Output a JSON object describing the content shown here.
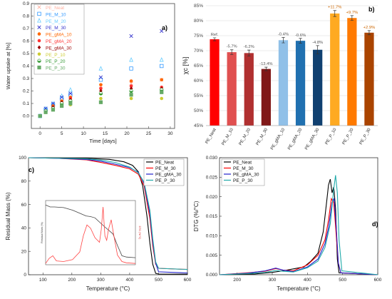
{
  "panels": {
    "a": {
      "label": "a)"
    },
    "b": {
      "label": "b)"
    },
    "c": {
      "label": "c)"
    },
    "d": {
      "label": "d)"
    }
  },
  "chart_data": [
    {
      "id": "a",
      "type": "scatter",
      "xlabel": "Time [days]",
      "ylabel": "Water uptake at [%]",
      "xlim": [
        -2,
        31
      ],
      "ylim": [
        -0.1,
        0.9
      ],
      "xticks": [
        0,
        5,
        10,
        15,
        20,
        25,
        30
      ],
      "yticks": [
        0.0,
        0.1,
        0.2,
        0.3,
        0.4,
        0.5,
        0.6,
        0.7,
        0.8,
        0.9
      ],
      "x": [
        0,
        1.3,
        3,
        5,
        7,
        14,
        21,
        28
      ],
      "legend_position": "top-left",
      "series": [
        {
          "name": "PE_Neat",
          "color": "#ffb0a0",
          "marker": "x",
          "values": [
            0,
            0.04,
            0.07,
            0.12,
            0.14,
            0.24,
            0.26,
            0.29
          ]
        },
        {
          "name": "PE_M_10",
          "color": "#3399ff",
          "marker": "square",
          "values": [
            0,
            0.05,
            0.09,
            0.14,
            0.17,
            0.29,
            0.38,
            0.4
          ]
        },
        {
          "name": "PE_M_20",
          "color": "#66ccff",
          "marker": "triangle",
          "values": [
            0,
            0.06,
            0.1,
            0.16,
            0.21,
            0.38,
            0.45,
            0.45
          ]
        },
        {
          "name": "PE_M_30",
          "color": "#3333cc",
          "marker": "x",
          "values": [
            0,
            0.06,
            0.1,
            0.15,
            0.18,
            0.31,
            0.64,
            0.68
          ]
        },
        {
          "name": "PE_gMA_10",
          "color": "#ff6600",
          "marker": "circle",
          "values": [
            0,
            0.04,
            0.08,
            0.12,
            0.15,
            0.25,
            0.28,
            0.29
          ]
        },
        {
          "name": "PE_gMA_20",
          "color": "#ff3333",
          "marker": "circle",
          "values": [
            0,
            0.04,
            0.07,
            0.11,
            0.14,
            0.22,
            0.24,
            0.23
          ]
        },
        {
          "name": "PE_gMA_30",
          "color": "#990000",
          "marker": "diamond",
          "values": [
            0,
            0.04,
            0.07,
            0.11,
            0.13,
            0.2,
            0.22,
            0.22
          ]
        },
        {
          "name": "PE_P_10",
          "color": "#cccc33",
          "marker": "circle",
          "values": [
            0,
            0.03,
            0.05,
            0.08,
            0.09,
            0.14,
            0.14,
            0.14
          ]
        },
        {
          "name": "PE_P_20",
          "color": "#339933",
          "marker": "half-circle",
          "values": [
            0,
            0.04,
            0.06,
            0.1,
            0.12,
            0.18,
            0.2,
            0.21
          ]
        },
        {
          "name": "PE_P_30",
          "color": "#66aa66",
          "marker": "square-x",
          "values": [
            0,
            0.03,
            0.05,
            0.08,
            0.1,
            0.11,
            0.17,
            0.19
          ]
        }
      ]
    },
    {
      "id": "b",
      "type": "bar",
      "ylabel": "χc [%]",
      "ylim": [
        45,
        85
      ],
      "yticks": [
        45,
        50,
        55,
        60,
        65,
        70,
        75,
        80,
        85
      ],
      "ytick_labels": [
        "45%",
        "50%",
        "55%",
        "60%",
        "65%",
        "70%",
        "75%",
        "80%",
        "85%"
      ],
      "grid": true,
      "categories": [
        "PE_Neat",
        "PE_M_10",
        "PE_M_20",
        "PE_M_30",
        "PE_gMA_10",
        "PE_gMA_20",
        "PE_gMA_30",
        "PE_P_10",
        "PE_P_20",
        "PE_P_30"
      ],
      "values": [
        73.8,
        69.5,
        69.2,
        63.9,
        73.5,
        73.3,
        70.3,
        82.4,
        80.9,
        76.0
      ],
      "errors": [
        0.5,
        0.8,
        1.0,
        0.6,
        0.9,
        0.8,
        1.4,
        1.0,
        0.8,
        0.7
      ],
      "colors": [
        "#ff0000",
        "#e05050",
        "#b03030",
        "#801818",
        "#90c0e8",
        "#2070b0",
        "#104070",
        "#ffaa22",
        "#ff7a00",
        "#aa4400"
      ],
      "annotations": [
        "Ref.",
        "-5.7%",
        "-6.2%",
        "-13.4%",
        "-0.4%",
        "-0.6%",
        "-4.8%",
        "+11.7%",
        "+9.7%",
        "+2.9%"
      ],
      "annotation_colors": [
        "#555555",
        "#555555",
        "#555555",
        "#555555",
        "#555555",
        "#555555",
        "#555555",
        "#cc6600",
        "#cc6600",
        "#cc6600"
      ]
    },
    {
      "id": "c",
      "type": "line",
      "xlabel": "Temperature (°C)",
      "ylabel": "Residual Mass (%)",
      "xlim": [
        50,
        600
      ],
      "ylim": [
        0,
        100
      ],
      "xticks": [
        100,
        200,
        300,
        400,
        500,
        600
      ],
      "yticks": [
        0,
        20,
        40,
        60,
        80,
        100
      ],
      "legend_position": "top-right",
      "series": [
        {
          "name": "PE_Neat",
          "color": "#000000",
          "x": [
            50,
            150,
            250,
            330,
            380,
            410,
            430,
            445,
            460,
            470,
            480,
            490,
            500,
            600
          ],
          "values": [
            100,
            99.8,
            99.5,
            98.6,
            96.5,
            93.5,
            88,
            76,
            50,
            27,
            9,
            1.2,
            0.6,
            0.5
          ]
        },
        {
          "name": "PE_M_30",
          "color": "#ff0000",
          "x": [
            50,
            150,
            250,
            300,
            350,
            400,
            430,
            450,
            470,
            480,
            490,
            500,
            600
          ],
          "values": [
            100,
            99.5,
            98.2,
            96,
            93.5,
            90.5,
            86,
            76,
            48,
            25,
            9,
            5.5,
            4.5
          ]
        },
        {
          "name": "PE_gMA_30",
          "color": "#2222cc",
          "x": [
            50,
            150,
            250,
            300,
            350,
            400,
            430,
            450,
            470,
            480,
            490,
            500,
            600
          ],
          "values": [
            100,
            99.5,
            98.5,
            97,
            94.5,
            91.5,
            87.5,
            78,
            52,
            28,
            10,
            2.5,
            1.5
          ]
        },
        {
          "name": "PE_P_30",
          "color": "#20aaaa",
          "x": [
            50,
            150,
            250,
            300,
            350,
            400,
            430,
            450,
            470,
            480,
            490,
            500,
            600
          ],
          "values": [
            100,
            99.6,
            99,
            98,
            96,
            92,
            87,
            79,
            55,
            31,
            11,
            5.5,
            4.5
          ]
        }
      ],
      "inset": {
        "ylabel_left": "Residual Mass (%)",
        "ylabel_right": "DTG (%/°C)",
        "mass_series": {
          "color": "#444444",
          "x": [
            0,
            0.05,
            0.1,
            0.2,
            0.3,
            0.4,
            0.45,
            0.5,
            0.55,
            0.65,
            0.75,
            0.8,
            0.85,
            0.9,
            1.0
          ],
          "values": [
            0.93,
            0.9,
            0.9,
            0.89,
            0.85,
            0.79,
            0.76,
            0.75,
            0.73,
            0.6,
            0.48,
            0.3,
            0.14,
            0.12,
            0.11
          ]
        },
        "dtg_series": {
          "color": "#ff4444",
          "x": [
            0,
            0.04,
            0.08,
            0.12,
            0.2,
            0.3,
            0.38,
            0.42,
            0.46,
            0.5,
            0.55,
            0.6,
            0.62,
            0.64,
            0.66,
            0.68,
            0.7,
            0.73,
            0.76,
            0.8,
            0.85,
            0.9,
            1.0
          ],
          "values": [
            0.02,
            0.1,
            0.14,
            0.06,
            0.05,
            0.08,
            0.2,
            0.45,
            0.62,
            0.57,
            0.42,
            0.35,
            0.55,
            0.9,
            0.45,
            0.38,
            0.55,
            0.7,
            0.45,
            0.15,
            0.05,
            0.03,
            0.02
          ]
        }
      }
    },
    {
      "id": "d",
      "type": "line",
      "xlabel": "Temperature (°C)",
      "ylabel": "DTG (%/°C)",
      "xlim": [
        150,
        600
      ],
      "ylim": [
        0,
        0.03
      ],
      "xticks": [
        200,
        300,
        400,
        500,
        600
      ],
      "yticks": [
        0.0,
        0.005,
        0.01,
        0.015,
        0.02,
        0.025,
        0.03
      ],
      "ytick_labels": [
        "0.000",
        "0.005",
        "0.010",
        "0.015",
        "0.020",
        "0.025",
        "0.030"
      ],
      "legend_position": "top-left",
      "series": [
        {
          "name": "PE_Neat",
          "color": "#000000",
          "x": [
            150,
            250,
            300,
            330,
            360,
            390,
            410,
            430,
            445,
            455,
            460,
            465,
            470,
            475,
            480,
            485,
            490,
            600
          ],
          "values": [
            0.0,
            0.0002,
            0.0006,
            0.001,
            0.0015,
            0.002,
            0.0035,
            0.0055,
            0.011,
            0.019,
            0.023,
            0.0245,
            0.021,
            0.0225,
            0.017,
            0.004,
            0.0005,
            0.0
          ]
        },
        {
          "name": "PE_M_30",
          "color": "#ff0000",
          "x": [
            150,
            230,
            280,
            310,
            330,
            360,
            400,
            430,
            450,
            460,
            468,
            475,
            482,
            488,
            495,
            600
          ],
          "values": [
            0.0,
            0.0005,
            0.0009,
            0.0016,
            0.0012,
            0.001,
            0.0025,
            0.005,
            0.009,
            0.014,
            0.0195,
            0.0185,
            0.01,
            0.003,
            0.0005,
            0.0
          ]
        },
        {
          "name": "PE_gMA_30",
          "color": "#2222cc",
          "x": [
            150,
            230,
            280,
            310,
            330,
            360,
            400,
            430,
            450,
            460,
            470,
            476,
            482,
            488,
            495,
            600
          ],
          "values": [
            0.0,
            0.0004,
            0.001,
            0.0017,
            0.0012,
            0.0008,
            0.002,
            0.004,
            0.008,
            0.012,
            0.0185,
            0.0195,
            0.012,
            0.003,
            0.0005,
            0.0
          ]
        },
        {
          "name": "PE_P_30",
          "color": "#20aaaa",
          "x": [
            150,
            230,
            280,
            310,
            330,
            360,
            400,
            430,
            450,
            465,
            475,
            480,
            485,
            490,
            498,
            600
          ],
          "values": [
            0.0,
            0.0003,
            0.0006,
            0.0011,
            0.0009,
            0.0007,
            0.0018,
            0.0035,
            0.007,
            0.013,
            0.022,
            0.0255,
            0.021,
            0.009,
            0.001,
            0.0
          ]
        }
      ]
    }
  ]
}
